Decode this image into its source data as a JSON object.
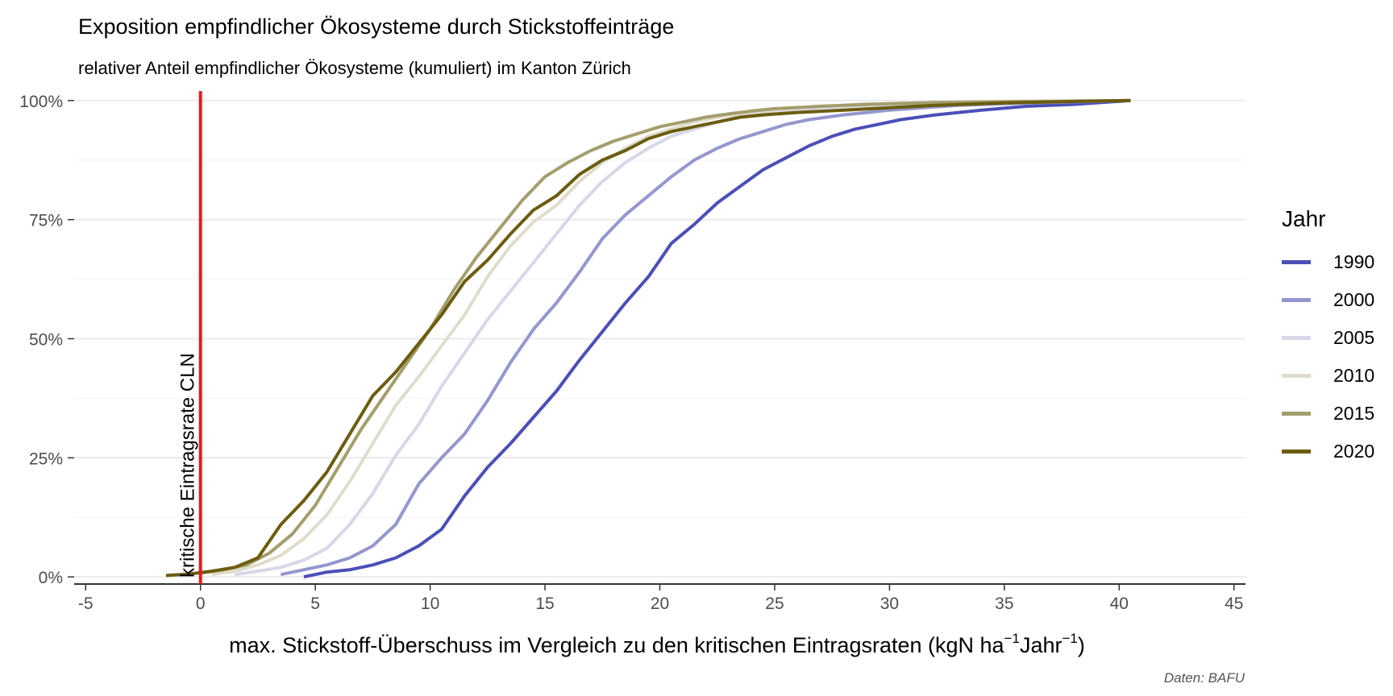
{
  "title": "Exposition empfindlicher Ökosysteme durch Stickstoffeinträge",
  "subtitle": "relativer Anteil empfindlicher Ökosysteme (kumuliert) im Kanton Zürich",
  "caption": "Daten: BAFU",
  "legend": {
    "title": "Jahr",
    "items": [
      {
        "label": "1990",
        "color": "#4b4fb8"
      },
      {
        "label": "2000",
        "color": "#9497cf"
      },
      {
        "label": "2005",
        "color": "#d8d7e8"
      },
      {
        "label": "2010",
        "color": "#e0dccb"
      },
      {
        "label": "2015",
        "color": "#a39e6c"
      },
      {
        "label": "2020",
        "color": "#6b5c0f"
      }
    ]
  },
  "chart_data": {
    "type": "line",
    "xlabel_main": "max. Stickstoff-Überschuss im Vergleich zu den kritischen Eintragsraten (kgN ha",
    "xlabel_sup1": "−1",
    "xlabel_mid": "Jahr",
    "xlabel_sup2": "−1",
    "xlabel_end": ")",
    "ylabel": "",
    "xlim": [
      -5.5,
      45.5
    ],
    "ylim": [
      -0.015,
      1.02
    ],
    "x_ticks": [
      -5,
      0,
      5,
      10,
      15,
      20,
      25,
      30,
      35,
      40,
      45
    ],
    "x_tick_labels": [
      "-5",
      "0",
      "5",
      "10",
      "15",
      "20",
      "25",
      "30",
      "35",
      "40",
      "45"
    ],
    "y_ticks": [
      0,
      0.25,
      0.5,
      0.75,
      1.0
    ],
    "y_tick_labels": [
      "0%",
      "25%",
      "50%",
      "75%",
      "100%"
    ],
    "grid": true,
    "legend_position": "right",
    "annotation": {
      "x": 0,
      "label": "kritische Eintragsrate CLN",
      "color": "#e01e1e"
    },
    "series": [
      {
        "name": "1990",
        "color": "#4b4fb8",
        "points": [
          [
            4.5,
            0.0
          ],
          [
            5.5,
            0.01
          ],
          [
            6.5,
            0.015
          ],
          [
            7.5,
            0.025
          ],
          [
            8.5,
            0.04
          ],
          [
            9.5,
            0.065
          ],
          [
            10.5,
            0.1
          ],
          [
            11.5,
            0.17
          ],
          [
            12.5,
            0.23
          ],
          [
            13.5,
            0.28
          ],
          [
            14.5,
            0.335
          ],
          [
            15.5,
            0.39
          ],
          [
            16.5,
            0.455
          ],
          [
            17.5,
            0.515
          ],
          [
            18.5,
            0.575
          ],
          [
            19.5,
            0.63
          ],
          [
            20.5,
            0.7
          ],
          [
            21.5,
            0.74
          ],
          [
            22.5,
            0.785
          ],
          [
            23.5,
            0.82
          ],
          [
            24.5,
            0.855
          ],
          [
            25.5,
            0.88
          ],
          [
            26.5,
            0.905
          ],
          [
            27.5,
            0.925
          ],
          [
            28.5,
            0.94
          ],
          [
            29.5,
            0.95
          ],
          [
            30.5,
            0.96
          ],
          [
            32,
            0.97
          ],
          [
            34,
            0.98
          ],
          [
            36,
            0.988
          ],
          [
            38,
            0.992
          ],
          [
            40.5,
            1.0
          ]
        ]
      },
      {
        "name": "2000",
        "color": "#9497cf",
        "points": [
          [
            3.5,
            0.005
          ],
          [
            4.5,
            0.015
          ],
          [
            5.5,
            0.025
          ],
          [
            6.5,
            0.04
          ],
          [
            7.5,
            0.065
          ],
          [
            8.5,
            0.11
          ],
          [
            9.5,
            0.195
          ],
          [
            10.5,
            0.25
          ],
          [
            11.5,
            0.3
          ],
          [
            12.5,
            0.37
          ],
          [
            13.5,
            0.45
          ],
          [
            14.5,
            0.52
          ],
          [
            15.5,
            0.575
          ],
          [
            16.5,
            0.64
          ],
          [
            17.5,
            0.71
          ],
          [
            18.5,
            0.76
          ],
          [
            19.5,
            0.8
          ],
          [
            20.5,
            0.84
          ],
          [
            21.5,
            0.875
          ],
          [
            22.5,
            0.9
          ],
          [
            23.5,
            0.92
          ],
          [
            24.5,
            0.935
          ],
          [
            25.5,
            0.95
          ],
          [
            26.5,
            0.96
          ],
          [
            28,
            0.97
          ],
          [
            30,
            0.98
          ],
          [
            33,
            0.99
          ],
          [
            36,
            0.995
          ],
          [
            40.5,
            1.0
          ]
        ]
      },
      {
        "name": "2005",
        "color": "#d8d7e8",
        "points": [
          [
            1.5,
            0.005
          ],
          [
            2.5,
            0.012
          ],
          [
            3.5,
            0.02
          ],
          [
            4.5,
            0.035
          ],
          [
            5.5,
            0.06
          ],
          [
            6.5,
            0.11
          ],
          [
            7.5,
            0.175
          ],
          [
            8.5,
            0.255
          ],
          [
            9.5,
            0.32
          ],
          [
            10.5,
            0.4
          ],
          [
            11.5,
            0.47
          ],
          [
            12.5,
            0.54
          ],
          [
            13.5,
            0.6
          ],
          [
            14.5,
            0.66
          ],
          [
            15.5,
            0.72
          ],
          [
            16.5,
            0.78
          ],
          [
            17.5,
            0.83
          ],
          [
            18.5,
            0.87
          ],
          [
            19.5,
            0.9
          ],
          [
            20.5,
            0.925
          ],
          [
            21.5,
            0.94
          ],
          [
            22.5,
            0.955
          ],
          [
            23.5,
            0.965
          ],
          [
            25,
            0.975
          ],
          [
            27,
            0.985
          ],
          [
            30,
            0.992
          ],
          [
            35,
            0.997
          ],
          [
            40.5,
            1.0
          ]
        ]
      },
      {
        "name": "2010",
        "color": "#e0dccb",
        "points": [
          [
            0.5,
            0.005
          ],
          [
            1.5,
            0.012
          ],
          [
            2.5,
            0.025
          ],
          [
            3.5,
            0.045
          ],
          [
            4.5,
            0.08
          ],
          [
            5.5,
            0.13
          ],
          [
            6.5,
            0.2
          ],
          [
            7.5,
            0.28
          ],
          [
            8.5,
            0.36
          ],
          [
            9.5,
            0.42
          ],
          [
            10.5,
            0.485
          ],
          [
            11.5,
            0.55
          ],
          [
            12.5,
            0.63
          ],
          [
            13.5,
            0.695
          ],
          [
            14.5,
            0.745
          ],
          [
            15.5,
            0.78
          ],
          [
            16.5,
            0.83
          ],
          [
            17.5,
            0.87
          ],
          [
            18.5,
            0.9
          ],
          [
            19.5,
            0.925
          ],
          [
            20.5,
            0.94
          ],
          [
            21.5,
            0.955
          ],
          [
            22.5,
            0.965
          ],
          [
            24,
            0.975
          ],
          [
            26,
            0.985
          ],
          [
            29,
            0.993
          ],
          [
            34,
            0.998
          ],
          [
            40.5,
            1.0
          ]
        ]
      },
      {
        "name": "2015",
        "color": "#a39e6c",
        "points": [
          [
            0,
            0.008
          ],
          [
            1,
            0.015
          ],
          [
            2,
            0.025
          ],
          [
            3,
            0.05
          ],
          [
            4,
            0.09
          ],
          [
            5,
            0.15
          ],
          [
            6,
            0.23
          ],
          [
            7,
            0.31
          ],
          [
            8,
            0.38
          ],
          [
            9,
            0.45
          ],
          [
            10,
            0.52
          ],
          [
            11,
            0.6
          ],
          [
            12,
            0.67
          ],
          [
            13,
            0.73
          ],
          [
            14,
            0.79
          ],
          [
            15,
            0.84
          ],
          [
            16,
            0.87
          ],
          [
            17,
            0.895
          ],
          [
            18,
            0.915
          ],
          [
            19,
            0.93
          ],
          [
            20,
            0.945
          ],
          [
            21,
            0.955
          ],
          [
            22,
            0.965
          ],
          [
            23,
            0.972
          ],
          [
            24,
            0.978
          ],
          [
            25,
            0.983
          ],
          [
            27,
            0.988
          ],
          [
            29,
            0.992
          ],
          [
            32,
            0.996
          ],
          [
            36,
            0.998
          ],
          [
            40.5,
            1.0
          ]
        ]
      },
      {
        "name": "2020",
        "color": "#6b5c0f",
        "points": [
          [
            -1.5,
            0.003
          ],
          [
            -0.5,
            0.006
          ],
          [
            0.5,
            0.012
          ],
          [
            1.5,
            0.02
          ],
          [
            2.5,
            0.04
          ],
          [
            3.5,
            0.11
          ],
          [
            4.5,
            0.16
          ],
          [
            5.5,
            0.22
          ],
          [
            6.5,
            0.3
          ],
          [
            7.5,
            0.38
          ],
          [
            8.5,
            0.43
          ],
          [
            9.5,
            0.49
          ],
          [
            10.5,
            0.55
          ],
          [
            11.5,
            0.62
          ],
          [
            12.5,
            0.665
          ],
          [
            13.5,
            0.72
          ],
          [
            14.5,
            0.77
          ],
          [
            15.5,
            0.8
          ],
          [
            16.5,
            0.845
          ],
          [
            17.5,
            0.875
          ],
          [
            18.5,
            0.895
          ],
          [
            19.5,
            0.92
          ],
          [
            20.5,
            0.935
          ],
          [
            21.5,
            0.945
          ],
          [
            22.5,
            0.955
          ],
          [
            23.5,
            0.965
          ],
          [
            24.5,
            0.97
          ],
          [
            26,
            0.975
          ],
          [
            28,
            0.98
          ],
          [
            30,
            0.985
          ],
          [
            32,
            0.99
          ],
          [
            35,
            0.995
          ],
          [
            38,
            0.998
          ],
          [
            40.5,
            1.0
          ]
        ]
      }
    ]
  }
}
